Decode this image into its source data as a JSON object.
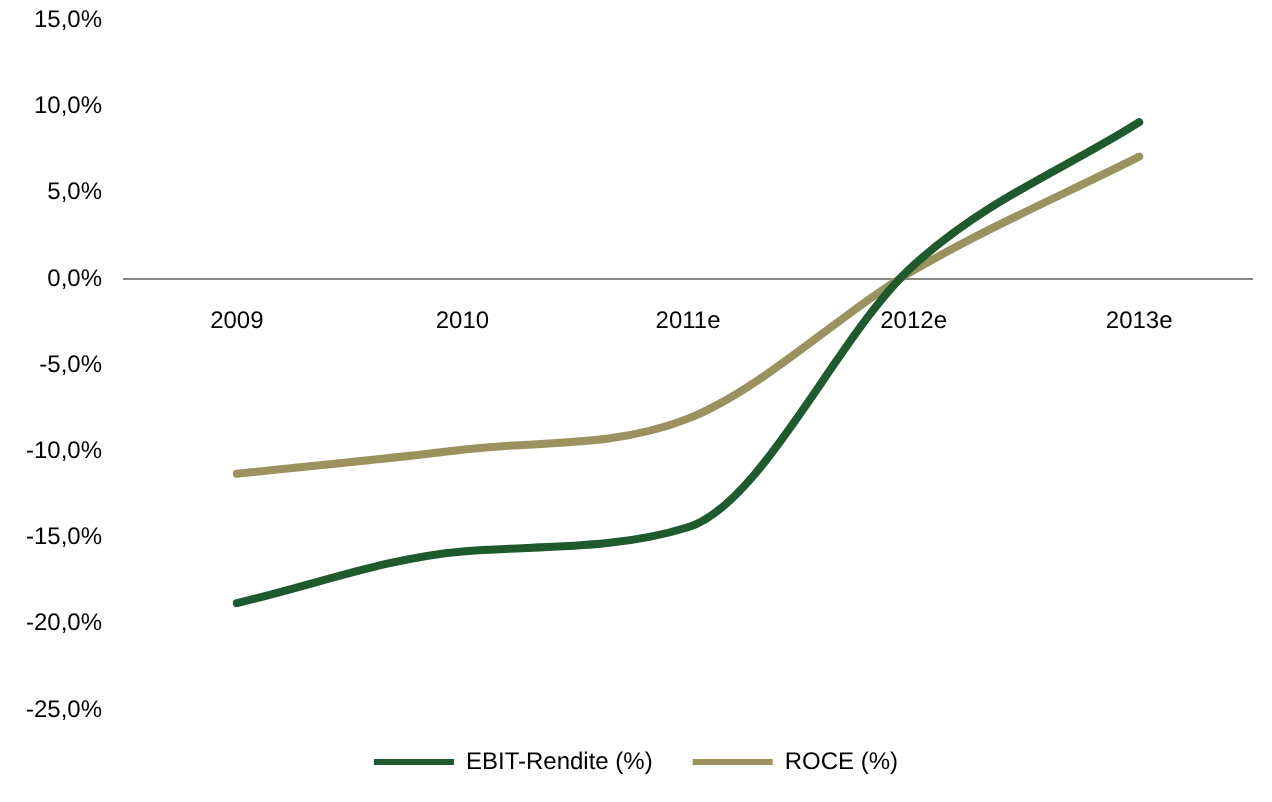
{
  "chart_data": {
    "type": "line",
    "categories": [
      "2009",
      "2010",
      "2011e",
      "2012e",
      "2013e"
    ],
    "series": [
      {
        "name": "EBIT-Rendite (%)",
        "color": "#1e5a2e",
        "values": [
          -18.8,
          -15.8,
          -14.4,
          0.8,
          9.1
        ]
      },
      {
        "name": "ROCE (%)",
        "color": "#9b9260",
        "values": [
          -11.3,
          -9.9,
          -8.1,
          0.5,
          7.1
        ]
      }
    ],
    "ylim": [
      -25,
      15
    ],
    "yticks": [
      {
        "value": -25,
        "label": "-25,0%"
      },
      {
        "value": -20,
        "label": "-20,0%"
      },
      {
        "value": -15,
        "label": "-15,0%"
      },
      {
        "value": -10,
        "label": "-10,0%"
      },
      {
        "value": -5,
        "label": "-5,0%"
      },
      {
        "value": 0,
        "label": "0,0%"
      },
      {
        "value": 5,
        "label": "5,0%"
      },
      {
        "value": 10,
        "label": "10,0%"
      },
      {
        "value": 15,
        "label": "15,0%"
      }
    ],
    "grid": false,
    "legend": "bottom",
    "marker": "none",
    "line_style": "solid"
  }
}
